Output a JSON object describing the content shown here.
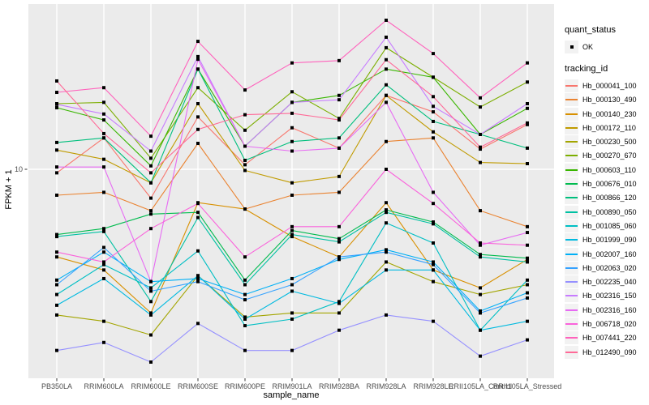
{
  "chart_data": {
    "type": "line",
    "title": "",
    "xlabel": "sample_name",
    "ylabel": "FPKM + 1",
    "y_scale": "log10",
    "y_ticks": [
      {
        "value": 10,
        "label": "10"
      }
    ],
    "x_categories": [
      "PB350LA",
      "RRIM600LA",
      "RRIM600LE",
      "RRIM600SE",
      "RRIM600PE",
      "RRIM901LA",
      "RRIM928BA",
      "RRIM928LA",
      "RRIM928LE",
      "RRII105LA_Control",
      "RRII105LA_Stressed"
    ],
    "panel_bg": "#EBEBEB",
    "grid_color": "#FFFFFF",
    "point_color": "#000000",
    "tick_label_color": "#4D4D4D",
    "series": [
      {
        "name": "Hb_000041_100",
        "color": "#F8766D",
        "values": [
          9.7,
          13.1,
          7.8,
          15.7,
          10.4,
          14.3,
          12.0,
          18.9,
          16.4,
          11.9,
          14.7
        ]
      },
      {
        "name": "Hb_000130_490",
        "color": "#EA8331",
        "values": [
          8.0,
          8.2,
          7.0,
          12.5,
          7.1,
          8.0,
          8.2,
          12.7,
          13.1,
          7.0,
          6.1
        ]
      },
      {
        "name": "Hb_000140_230",
        "color": "#D89000",
        "values": [
          4.7,
          4.2,
          2.9,
          7.5,
          7.1,
          5.6,
          4.7,
          7.5,
          4.2,
          3.6,
          4.6
        ]
      },
      {
        "name": "Hb_000172_110",
        "color": "#C09B00",
        "values": [
          11.8,
          10.9,
          8.9,
          17.6,
          9.9,
          8.9,
          9.4,
          18.9,
          13.8,
          10.6,
          10.5
        ]
      },
      {
        "name": "Hb_000230_500",
        "color": "#A3A500",
        "values": [
          2.85,
          2.7,
          2.4,
          4.0,
          2.8,
          2.9,
          2.9,
          4.5,
          3.8,
          3.4,
          3.7
        ]
      },
      {
        "name": "Hb_000270_670",
        "color": "#7CAE00",
        "values": [
          17.6,
          17.8,
          11.0,
          20.2,
          14.0,
          19.5,
          15.5,
          28.5,
          22.1,
          17.1,
          21.2
        ]
      },
      {
        "name": "Hb_000603_110",
        "color": "#39B600",
        "values": [
          17.0,
          15.3,
          10.3,
          23.7,
          12.2,
          17.8,
          18.9,
          23.7,
          22.1,
          13.5,
          16.9
        ]
      },
      {
        "name": "Hb_000676_010",
        "color": "#00BB4E",
        "values": [
          5.7,
          6.0,
          6.8,
          6.9,
          3.85,
          5.9,
          5.5,
          7.05,
          6.35,
          4.8,
          4.65
        ]
      },
      {
        "name": "Hb_000866_120",
        "color": "#00BF7D",
        "values": [
          12.6,
          13.1,
          8.9,
          23.7,
          10.8,
          12.7,
          13.1,
          20.7,
          15.1,
          13.5,
          12.0
        ]
      },
      {
        "name": "Hb_000890_050",
        "color": "#00C1A3",
        "values": [
          5.6,
          5.85,
          3.2,
          6.6,
          3.7,
          5.7,
          5.35,
          6.9,
          6.25,
          4.7,
          4.5
        ]
      },
      {
        "name": "Hb_001085_060",
        "color": "#00BFC4",
        "values": [
          3.4,
          4.4,
          3.6,
          4.95,
          2.6,
          2.75,
          3.2,
          6.3,
          5.3,
          2.5,
          3.85
        ]
      },
      {
        "name": "Hb_001999_090",
        "color": "#00BAE0",
        "values": [
          3.1,
          3.9,
          2.85,
          4.0,
          2.75,
          3.5,
          3.15,
          4.2,
          4.2,
          2.5,
          2.7
        ]
      },
      {
        "name": "Hb_002007_160",
        "color": "#00B0F6",
        "values": [
          3.85,
          4.9,
          3.8,
          3.9,
          3.4,
          3.9,
          4.6,
          5.0,
          4.5,
          2.95,
          3.45
        ]
      },
      {
        "name": "Hb_002063_020",
        "color": "#35A2FF",
        "values": [
          3.7,
          5.1,
          3.5,
          3.8,
          3.25,
          3.7,
          4.7,
          4.9,
          4.4,
          2.9,
          3.3
        ]
      },
      {
        "name": "Hb_002235_040",
        "color": "#9590FF",
        "values": [
          2.1,
          2.25,
          1.9,
          2.65,
          2.1,
          2.1,
          2.5,
          2.85,
          2.7,
          2.0,
          2.3
        ]
      },
      {
        "name": "Hb_002316_150",
        "color": "#C77CFF",
        "values": [
          17.5,
          16.1,
          11.7,
          26.4,
          12.2,
          17.8,
          18.2,
          31.2,
          17.2,
          13.5,
          17.6
        ]
      },
      {
        "name": "Hb_002316_160",
        "color": "#E76BF3",
        "values": [
          10.2,
          10.2,
          3.8,
          25.8,
          12.2,
          11.7,
          12.0,
          17.8,
          8.2,
          5.2,
          5.8
        ]
      },
      {
        "name": "Hb_006718_020",
        "color": "#FA62DB",
        "values": [
          4.9,
          4.5,
          6.0,
          7.45,
          4.7,
          6.1,
          6.1,
          10.0,
          7.45,
          5.3,
          5.2
        ]
      },
      {
        "name": "Hb_007441_220",
        "color": "#FF62BC",
        "values": [
          19.4,
          20.2,
          13.3,
          30.1,
          19.8,
          25.0,
          25.5,
          36.1,
          27.1,
          18.5,
          25.0
        ]
      },
      {
        "name": "Hb_012490_090",
        "color": "#FF6A98",
        "values": [
          21.4,
          13.6,
          9.7,
          14.1,
          16.0,
          16.2,
          15.3,
          25.7,
          18.7,
          12.1,
          14.9
        ]
      }
    ]
  },
  "legend": {
    "quant_status_title": "quant_status",
    "quant_status_items": [
      {
        "label": "OK"
      }
    ],
    "tracking_id_title": "tracking_id"
  }
}
